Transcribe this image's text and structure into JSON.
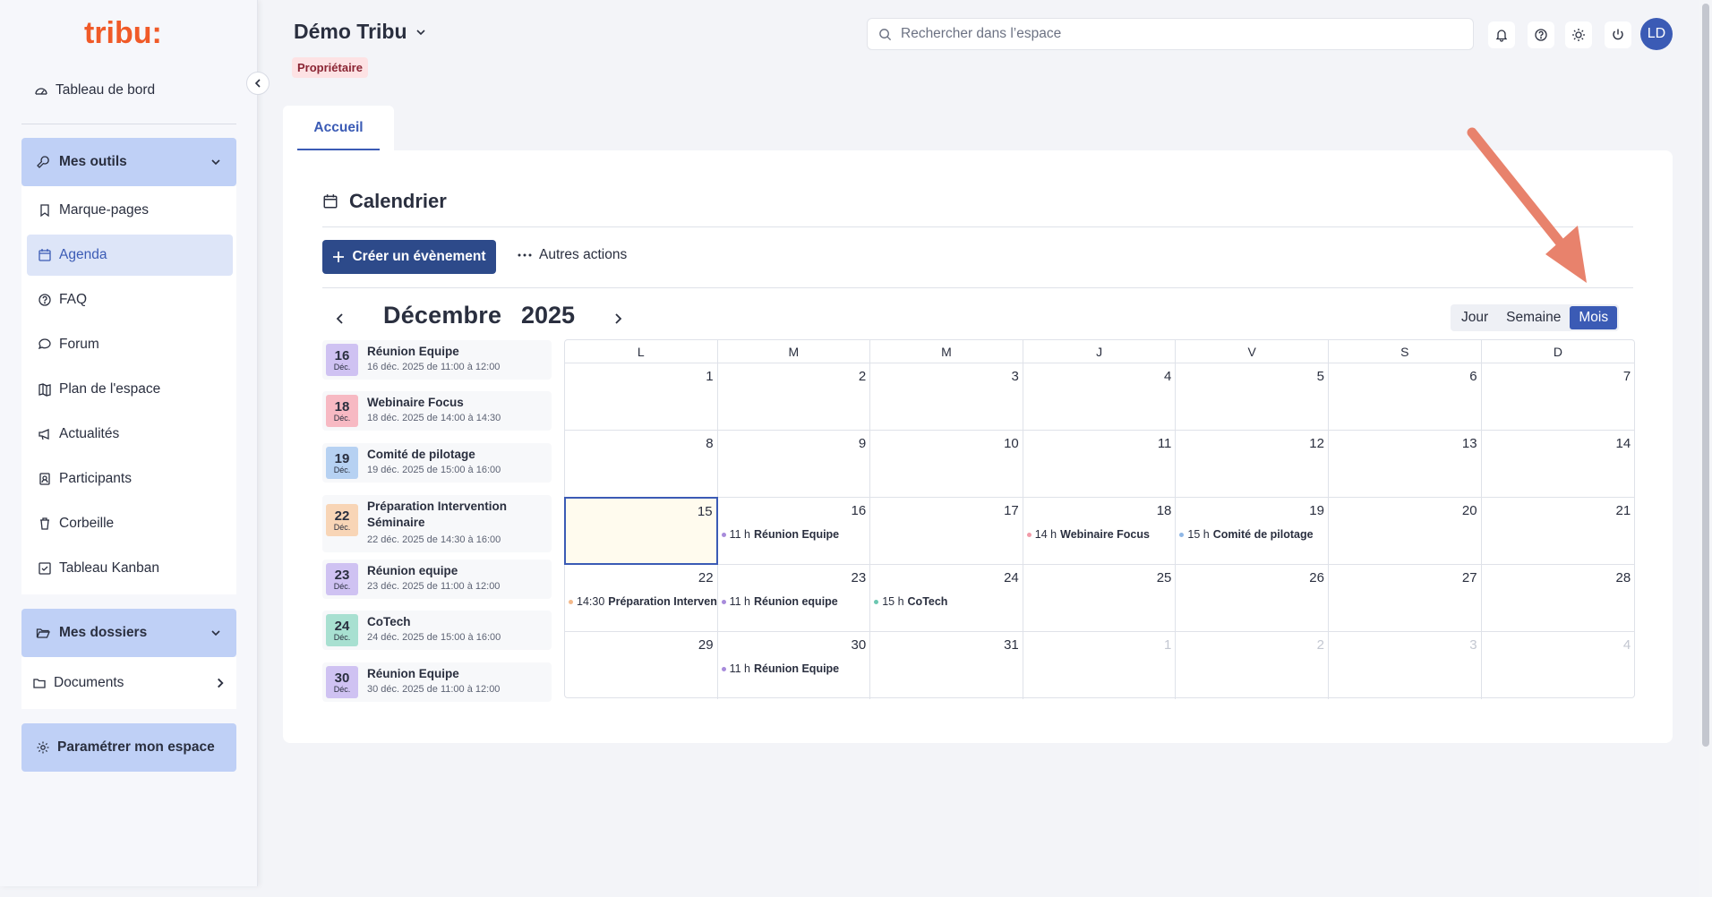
{
  "sidebar": {
    "logo_text": "tribu:",
    "dashboard": "Tableau de bord",
    "tools_group": "Mes outils",
    "tools": [
      {
        "label": "Marque-pages",
        "icon": "bookmark-icon"
      },
      {
        "label": "Agenda",
        "icon": "calendar-icon",
        "active": true
      },
      {
        "label": "FAQ",
        "icon": "question-icon"
      },
      {
        "label": "Forum",
        "icon": "chat-icon"
      },
      {
        "label": "Plan de l'espace",
        "icon": "map-icon"
      },
      {
        "label": "Actualités",
        "icon": "megaphone-icon"
      },
      {
        "label": "Participants",
        "icon": "contacts-icon"
      },
      {
        "label": "Corbeille",
        "icon": "trash-icon"
      },
      {
        "label": "Tableau Kanban",
        "icon": "kanban-icon"
      }
    ],
    "folders_group": "Mes dossiers",
    "documents": "Documents",
    "settings": "Paramétrer mon espace"
  },
  "header": {
    "space_title": "Démo Tribu",
    "role": "Propriétaire",
    "search_placeholder": "Rechercher dans l’espace",
    "avatar_initials": "LD"
  },
  "tabs": [
    {
      "label": "Accueil"
    }
  ],
  "calendar": {
    "title": "Calendrier",
    "create_label": "Créer un évènement",
    "more_label": "Autres actions",
    "month": "Décembre",
    "year": "2025",
    "views": [
      {
        "label": "Jour"
      },
      {
        "label": "Semaine"
      },
      {
        "label": "Mois",
        "active": true
      }
    ],
    "weekdays": [
      "L",
      "M",
      "M",
      "J",
      "V",
      "S",
      "D"
    ],
    "weeks": [
      [
        {
          "n": "1"
        },
        {
          "n": "2"
        },
        {
          "n": "3"
        },
        {
          "n": "4"
        },
        {
          "n": "5"
        },
        {
          "n": "6"
        },
        {
          "n": "7"
        }
      ],
      [
        {
          "n": "8"
        },
        {
          "n": "9"
        },
        {
          "n": "10"
        },
        {
          "n": "11"
        },
        {
          "n": "12"
        },
        {
          "n": "13"
        },
        {
          "n": "14"
        }
      ],
      [
        {
          "n": "15",
          "today": true
        },
        {
          "n": "16",
          "ev": {
            "time": "11 h",
            "title": "Réunion Equipe",
            "color": "#a78bdb"
          }
        },
        {
          "n": "17"
        },
        {
          "n": "18",
          "ev": {
            "time": "14 h",
            "title": "Webinaire Focus",
            "color": "#f29aa8"
          }
        },
        {
          "n": "19",
          "ev": {
            "time": "15 h",
            "title": "Comité de pilotage",
            "color": "#8fb7e6"
          }
        },
        {
          "n": "20"
        },
        {
          "n": "21"
        }
      ],
      [
        {
          "n": "22",
          "ev": {
            "time": "14:30",
            "title": "Préparation Intervention Séminaire",
            "color": "#f4b98a"
          }
        },
        {
          "n": "23",
          "ev": {
            "time": "11 h",
            "title": "Réunion equipe",
            "color": "#a78bdb"
          }
        },
        {
          "n": "24",
          "ev": {
            "time": "15 h",
            "title": "CoTech",
            "color": "#6cc7b1"
          }
        },
        {
          "n": "25"
        },
        {
          "n": "26"
        },
        {
          "n": "27"
        },
        {
          "n": "28"
        }
      ],
      [
        {
          "n": "29"
        },
        {
          "n": "30",
          "ev": {
            "time": "11 h",
            "title": "Réunion Equipe",
            "color": "#a78bdb"
          }
        },
        {
          "n": "31"
        },
        {
          "n": "1",
          "other": true
        },
        {
          "n": "2",
          "other": true
        },
        {
          "n": "3",
          "other": true
        },
        {
          "n": "4",
          "other": true
        }
      ]
    ],
    "events": [
      {
        "day": "16",
        "mon": "Déc.",
        "title": "Réunion Equipe",
        "time": "16 déc. 2025 de 11:00 à 12:00",
        "color": "#cfc2f2"
      },
      {
        "day": "18",
        "mon": "Déc.",
        "title": "Webinaire Focus",
        "time": "18 déc. 2025 de 14:00 à 14:30",
        "color": "#f7b9c3"
      },
      {
        "day": "19",
        "mon": "Déc.",
        "title": "Comité de pilotage",
        "time": "19 déc. 2025 de 15:00 à 16:00",
        "color": "#b6d1f2"
      },
      {
        "day": "22",
        "mon": "Déc.",
        "title": "Préparation Intervention Séminaire",
        "time": "22 déc. 2025 de 14:30 à 16:00",
        "color": "#f8d5b6"
      },
      {
        "day": "23",
        "mon": "Déc.",
        "title": "Réunion equipe",
        "time": "23 déc. 2025 de 11:00 à 12:00",
        "color": "#cfc2f2"
      },
      {
        "day": "24",
        "mon": "Déc.",
        "title": "CoTech",
        "time": "24 déc. 2025 de 15:00 à 16:00",
        "color": "#a8e0d1"
      },
      {
        "day": "30",
        "mon": "Déc.",
        "title": "Réunion Equipe",
        "time": "30 déc. 2025 de 11:00 à 12:00",
        "color": "#cfc2f2"
      }
    ]
  },
  "colors": {
    "accent": "#3b5bb5",
    "button_dark": "#2d4a8a",
    "group_bg": "#bfd0f6",
    "annotation": "#e8826c"
  }
}
